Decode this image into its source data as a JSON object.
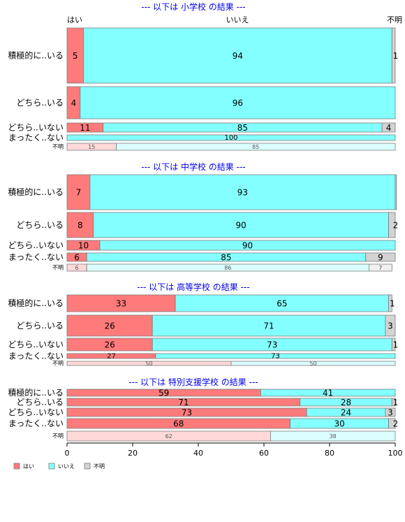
{
  "chart_data": {
    "type": "bar",
    "orientation": "horizontal",
    "stacked": "percent",
    "colors": {
      "yes": "#ff7b7b",
      "no": "#83ffff",
      "unknown": "#d3d3d3"
    },
    "top_labels": {
      "yes": "はい",
      "no": "いいえ",
      "unknown": "不明"
    },
    "xlim": [
      0,
      100
    ],
    "x_ticks": [
      "0",
      "20",
      "40",
      "60",
      "80",
      "100"
    ],
    "legend": {
      "placement": "bottom-left",
      "items": [
        {
          "key": "yes",
          "label": "はい"
        },
        {
          "key": "no",
          "label": "いいえ"
        },
        {
          "key": "unknown",
          "label": "不明"
        }
      ]
    },
    "panels": [
      {
        "title": "--- 以下は 小学校 の結果 ---",
        "rows": [
          {
            "label": "積極的に..いる",
            "values": [
              5,
              94,
              1
            ],
            "labels": [
              "5",
              "94",
              "1"
            ]
          },
          {
            "label": "どちら..いる",
            "values": [
              4,
              96,
              0
            ],
            "labels": [
              "4",
              "96",
              ""
            ]
          },
          {
            "label": "どちら..いない",
            "values": [
              11,
              85,
              4
            ],
            "labels": [
              "11",
              "85",
              "4"
            ]
          },
          {
            "label": "まったく..ない",
            "values": [
              0,
              100,
              0
            ],
            "labels": [
              "",
              "100",
              ""
            ]
          },
          {
            "label": "不明",
            "values": [
              15,
              85,
              0
            ],
            "labels": [
              "15",
              "85",
              ""
            ],
            "faded": true
          }
        ]
      },
      {
        "title": "--- 以下は 中学校 の結果 ---",
        "rows": [
          {
            "label": "積極的に..いる",
            "values": [
              7,
              93,
              0.4
            ],
            "labels": [
              "7",
              "93",
              ""
            ]
          },
          {
            "label": "どちら..いる",
            "values": [
              8,
              90,
              2
            ],
            "labels": [
              "8",
              "90",
              "2"
            ]
          },
          {
            "label": "どちら..いない",
            "values": [
              10,
              90,
              0
            ],
            "labels": [
              "10",
              "90",
              ""
            ]
          },
          {
            "label": "まったく..ない",
            "values": [
              6,
              85,
              9
            ],
            "labels": [
              "6",
              "85",
              "9"
            ]
          },
          {
            "label": "不明",
            "values": [
              6,
              86,
              7
            ],
            "labels": [
              "6",
              "86",
              "7"
            ],
            "faded": true
          }
        ]
      },
      {
        "title": "--- 以下は 高等学校 の結果 ---",
        "rows": [
          {
            "label": "積極的に..いる",
            "values": [
              33,
              65,
              1
            ],
            "labels": [
              "33",
              "65",
              "1"
            ]
          },
          {
            "label": "どちら..いる",
            "values": [
              26,
              71,
              3
            ],
            "labels": [
              "26",
              "71",
              "3"
            ]
          },
          {
            "label": "どちら..いない",
            "values": [
              26,
              73,
              1
            ],
            "labels": [
              "26",
              "73",
              "1"
            ]
          },
          {
            "label": "まったく..ない",
            "values": [
              27,
              73,
              0
            ],
            "labels": [
              "27",
              "73",
              ""
            ]
          },
          {
            "label": "不明",
            "values": [
              50,
              50,
              0
            ],
            "labels": [
              "50",
              "50",
              ""
            ],
            "faded": true
          }
        ]
      },
      {
        "title": "--- 以下は 特別支援学校 の結果 ---",
        "rows": [
          {
            "label": "積極的に..いる",
            "values": [
              59,
              41,
              0
            ],
            "labels": [
              "59",
              "41",
              ""
            ]
          },
          {
            "label": "どちら..いる",
            "values": [
              71,
              28,
              1
            ],
            "labels": [
              "71",
              "28",
              "1"
            ]
          },
          {
            "label": "どちら..いない",
            "values": [
              73,
              24,
              3
            ],
            "labels": [
              "73",
              "24",
              "3"
            ]
          },
          {
            "label": "まったく..ない",
            "values": [
              68,
              30,
              2
            ],
            "labels": [
              "68",
              "30",
              "2"
            ]
          },
          {
            "label": "不明",
            "values": [
              62,
              38,
              0
            ],
            "labels": [
              "62",
              "38",
              ""
            ],
            "faded": true
          }
        ]
      }
    ]
  }
}
